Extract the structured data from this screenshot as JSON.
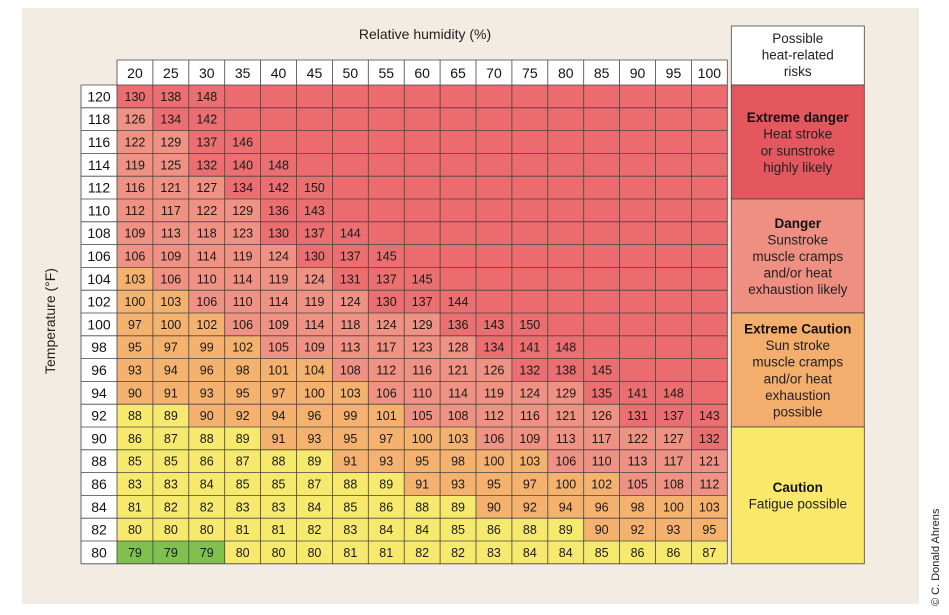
{
  "credit": "© C. Donald Ahrens",
  "chart_data": {
    "type": "heatmap",
    "xlabel": "Relative humidity (%)",
    "ylabel": "Temperature (°F)",
    "humidity": [
      20,
      25,
      30,
      35,
      40,
      45,
      50,
      55,
      60,
      65,
      70,
      75,
      80,
      85,
      90,
      95,
      100
    ],
    "temperature": [
      120,
      118,
      116,
      114,
      112,
      110,
      108,
      106,
      104,
      102,
      100,
      98,
      96,
      94,
      92,
      90,
      88,
      86,
      84,
      82,
      80
    ],
    "values": [
      [
        130,
        138,
        148,
        null,
        null,
        null,
        null,
        null,
        null,
        null,
        null,
        null,
        null,
        null,
        null,
        null,
        null
      ],
      [
        126,
        134,
        142,
        null,
        null,
        null,
        null,
        null,
        null,
        null,
        null,
        null,
        null,
        null,
        null,
        null,
        null
      ],
      [
        122,
        129,
        137,
        146,
        null,
        null,
        null,
        null,
        null,
        null,
        null,
        null,
        null,
        null,
        null,
        null,
        null
      ],
      [
        119,
        125,
        132,
        140,
        148,
        null,
        null,
        null,
        null,
        null,
        null,
        null,
        null,
        null,
        null,
        null,
        null
      ],
      [
        116,
        121,
        127,
        134,
        142,
        150,
        null,
        null,
        null,
        null,
        null,
        null,
        null,
        null,
        null,
        null,
        null
      ],
      [
        112,
        117,
        122,
        129,
        136,
        143,
        null,
        null,
        null,
        null,
        null,
        null,
        null,
        null,
        null,
        null,
        null
      ],
      [
        109,
        113,
        118,
        123,
        130,
        137,
        144,
        null,
        null,
        null,
        null,
        null,
        null,
        null,
        null,
        null,
        null
      ],
      [
        106,
        109,
        114,
        119,
        124,
        130,
        137,
        145,
        null,
        null,
        null,
        null,
        null,
        null,
        null,
        null,
        null
      ],
      [
        103,
        106,
        110,
        114,
        119,
        124,
        131,
        137,
        145,
        null,
        null,
        null,
        null,
        null,
        null,
        null,
        null
      ],
      [
        100,
        103,
        106,
        110,
        114,
        119,
        124,
        130,
        137,
        144,
        null,
        null,
        null,
        null,
        null,
        null,
        null
      ],
      [
        97,
        100,
        102,
        106,
        109,
        114,
        118,
        124,
        129,
        136,
        143,
        150,
        null,
        null,
        null,
        null,
        null
      ],
      [
        95,
        97,
        99,
        102,
        105,
        109,
        113,
        117,
        123,
        128,
        134,
        141,
        148,
        null,
        null,
        null,
        null
      ],
      [
        93,
        94,
        96,
        98,
        101,
        104,
        108,
        112,
        116,
        121,
        126,
        132,
        138,
        145,
        null,
        null,
        null
      ],
      [
        90,
        91,
        93,
        95,
        97,
        100,
        103,
        106,
        110,
        114,
        119,
        124,
        129,
        135,
        141,
        148,
        null
      ],
      [
        88,
        89,
        90,
        92,
        94,
        96,
        99,
        101,
        105,
        108,
        112,
        116,
        121,
        126,
        131,
        137,
        143
      ],
      [
        86,
        87,
        88,
        89,
        91,
        93,
        95,
        97,
        100,
        103,
        106,
        109,
        113,
        117,
        122,
        127,
        132
      ],
      [
        85,
        85,
        86,
        87,
        88,
        89,
        91,
        93,
        95,
        98,
        100,
        103,
        106,
        110,
        113,
        117,
        121
      ],
      [
        83,
        83,
        84,
        85,
        85,
        87,
        88,
        89,
        91,
        93,
        95,
        97,
        100,
        102,
        105,
        108,
        112
      ],
      [
        81,
        82,
        82,
        83,
        83,
        84,
        85,
        86,
        88,
        89,
        90,
        92,
        94,
        96,
        98,
        100,
        103
      ],
      [
        80,
        80,
        80,
        81,
        81,
        82,
        83,
        84,
        84,
        85,
        86,
        88,
        89,
        90,
        92,
        93,
        95
      ],
      [
        79,
        79,
        79,
        80,
        80,
        80,
        81,
        81,
        82,
        82,
        83,
        84,
        84,
        85,
        86,
        86,
        87
      ]
    ],
    "risk_header": [
      "Possible",
      "heat-related",
      "risks"
    ],
    "risks": [
      {
        "title": "Extreme danger",
        "lines": [
          "Heat stroke",
          "or sunstroke",
          "highly likely"
        ],
        "color": "#e4575f"
      },
      {
        "title": "Danger",
        "lines": [
          "Sunstroke",
          "muscle cramps",
          "and/or heat",
          "exhaustion likely"
        ],
        "color": "#ee8f82"
      },
      {
        "title": "Extreme Caution",
        "lines": [
          "Sun stroke",
          "muscle cramps",
          "and/or heat",
          "exhaustion",
          "possible"
        ],
        "color": "#f3ad6c"
      },
      {
        "title": "Caution",
        "lines": [
          "Fatigue possible"
        ],
        "color": "#f9e86a"
      }
    ],
    "colors": {
      "empty": "#ec6b6f",
      "extreme_danger": "#eb6e70",
      "danger": "#ef9183",
      "extreme_caution": "#f5b26e",
      "caution": "#f6e96d",
      "safe": "#7fc04e"
    }
  }
}
